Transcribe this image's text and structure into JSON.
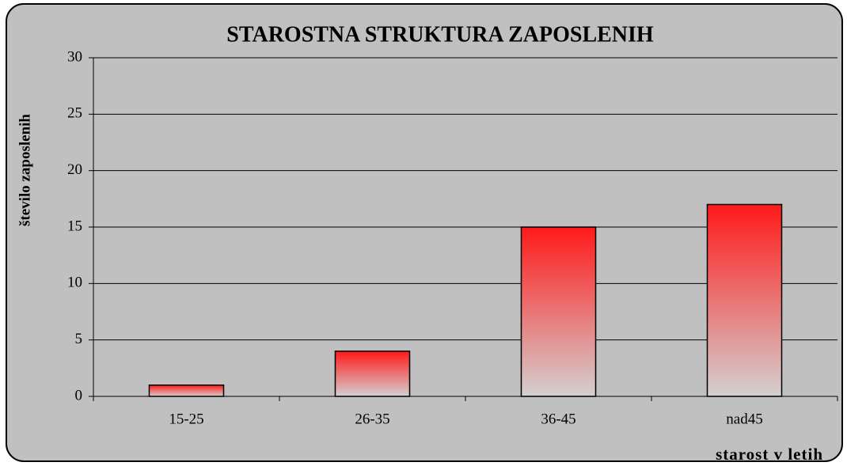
{
  "chart_data": {
    "type": "bar",
    "title": "STAROSTNA STRUKTURA ZAPOSLENIH",
    "y_label": "število zaposlenih",
    "x_label": "starost v letih",
    "categories": [
      "15-25",
      "26-35",
      "36-45",
      "nad45"
    ],
    "values": [
      1,
      4,
      15,
      17
    ],
    "color": "#ff1a1a",
    "ylim": [
      0,
      30
    ],
    "yticks": [
      0,
      5,
      10,
      15,
      20,
      25,
      30
    ],
    "grid": true
  }
}
